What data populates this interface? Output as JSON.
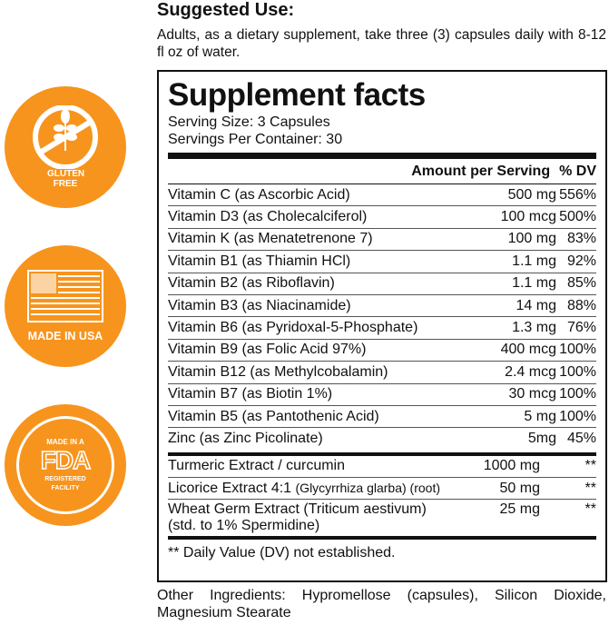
{
  "badges": [
    {
      "label": "GLUTEN FREE",
      "icon": "wheat-crossed-icon"
    },
    {
      "label": "MADE IN USA",
      "icon": "us-flag-icon"
    },
    {
      "label_top": "MADE IN A",
      "label_mid": "FDA",
      "label_bottom": "REGISTERED FACILITY",
      "icon": "fda-icon"
    }
  ],
  "colors": {
    "badge": "#f7941d"
  },
  "suggested_use": {
    "title": "Suggested Use:",
    "text": "Adults, as a dietary supplement, take three (3) capsules daily with 8-12 fl oz of water."
  },
  "facts": {
    "title": "Supplement facts",
    "serving_size": "Serving Size: 3 Capsules",
    "servings_per_container": "Servings Per Container: 30",
    "header_amount": "Amount per Serving",
    "header_dv": "% DV",
    "vitamins": [
      {
        "name": "Vitamin C (as Ascorbic Acid)",
        "amount": "500 mg",
        "dv": "556%"
      },
      {
        "name": "Vitamin D3 (as Cholecalciferol)",
        "amount": "100 mcg",
        "dv": "500%"
      },
      {
        "name": "Vitamin K (as Menatetrenone 7)",
        "amount": "100 mg",
        "dv": "83%"
      },
      {
        "name": "Vitamin B1 (as Thiamin HCl)",
        "amount": "1.1 mg",
        "dv": "92%"
      },
      {
        "name": "Vitamin B2 (as Riboflavin)",
        "amount": "1.1 mg",
        "dv": "85%"
      },
      {
        "name": "Vitamin B3 (as Niacinamide)",
        "amount": "14 mg",
        "dv": "88%"
      },
      {
        "name": "Vitamin B6 (as Pyridoxal-5-Phosphate)",
        "amount": "1.3 mg",
        "dv": "76%"
      },
      {
        "name": "Vitamin B9 (as Folic Acid 97%)",
        "amount": "400 mcg",
        "dv": "100%"
      },
      {
        "name": "Vitamin B12 (as Methylcobalamin)",
        "amount": "2.4 mcg",
        "dv": "100%"
      },
      {
        "name": "Vitamin B7 (as Biotin 1%)",
        "amount": "30 mcg",
        "dv": "100%"
      },
      {
        "name": "Vitamin B5 (as Pantothenic Acid)",
        "amount": "5 mg",
        "dv": "100%"
      },
      {
        "name": "Zinc (as Zinc Picolinate)",
        "amount": "5mg",
        "dv": "45%"
      }
    ],
    "extracts": [
      {
        "name": "Turmeric Extract / curcumin",
        "amount": "1000 mg",
        "dv": "**"
      },
      {
        "name": "Licorice Extract 4:1",
        "name_detail": "(Glycyrrhiza glarba) (root)",
        "amount": "50 mg",
        "dv": "**"
      },
      {
        "name": "Wheat Germ Extract (Triticum aestivum)",
        "name_line2": "(std. to 1% Spermidine)",
        "amount": "25 mg",
        "dv": "**"
      }
    ],
    "footnote": "** Daily Value (DV) not established."
  },
  "other_ingredients": "Other Ingredients: Hypromellose (capsules), Silicon Dioxide, Magnesium Stearate"
}
